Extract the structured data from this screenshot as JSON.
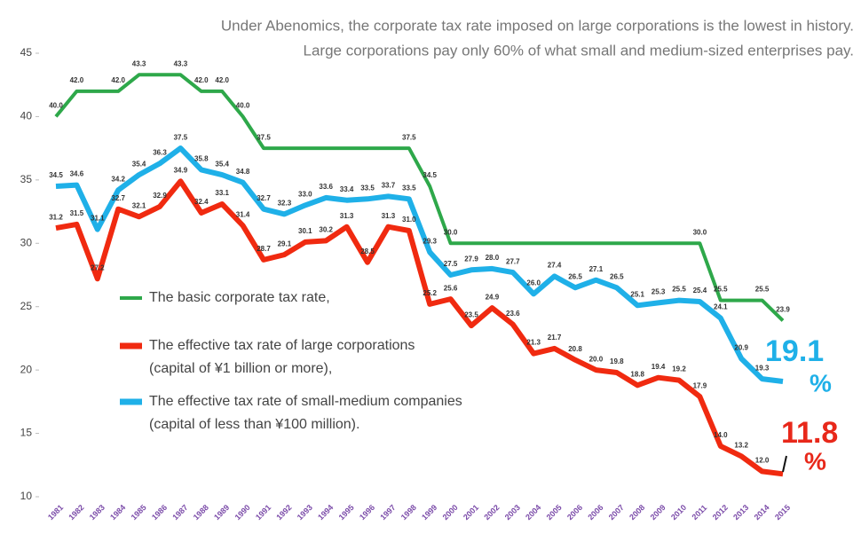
{
  "chart_data": {
    "type": "line",
    "title": [
      "Under Abenomics, the corporate tax rate imposed on large corporations is the lowest in history.",
      "Large corporations pay only 60% of what small and medium-sized enterprises pay."
    ],
    "categories": [
      "1981",
      "1982",
      "1983",
      "1984",
      "1985",
      "1986",
      "1987",
      "1988",
      "1989",
      "1990",
      "1991",
      "1992",
      "1993",
      "1994",
      "1995",
      "1996",
      "1997",
      "1998",
      "1999",
      "2000",
      "2001",
      "2002",
      "2003",
      "2004",
      "2005",
      "2006",
      "2006",
      "2007",
      "2008",
      "2009",
      "2010",
      "2011",
      "2012",
      "2013",
      "2014",
      "2015"
    ],
    "ylim": [
      10,
      45
    ],
    "yticks": [
      10,
      15,
      20,
      25,
      30,
      35,
      40,
      45
    ],
    "series": [
      {
        "name": "The basic corporate tax rate,",
        "color": "#2ea84a",
        "values": [
          40,
          42,
          42,
          42,
          43.3,
          43.3,
          43.3,
          42,
          42,
          40,
          37.5,
          37.5,
          37.5,
          37.5,
          37.5,
          37.5,
          37.5,
          37.5,
          34.5,
          30,
          30,
          30,
          30,
          30,
          30,
          30,
          30,
          30,
          30,
          30,
          30,
          30,
          25.5,
          25.5,
          25.5,
          23.9
        ],
        "value_labels": [
          "40.0",
          "42.0",
          null,
          "42.0",
          "43.3",
          null,
          "43.3",
          "42.0",
          "42.0",
          "40.0",
          "37.5",
          null,
          null,
          null,
          null,
          null,
          null,
          "37.5",
          "34.5",
          "30.0",
          null,
          null,
          null,
          null,
          null,
          null,
          null,
          null,
          null,
          null,
          null,
          "30.0",
          "25.5",
          null,
          "25.5",
          "23.9"
        ]
      },
      {
        "name": "The effective tax rate of large corporations",
        "name_detail": "(capital of ¥1 billion or more),",
        "color": "#f02a10",
        "values": [
          31.2,
          31.5,
          27.2,
          32.7,
          32.1,
          32.9,
          34.9,
          32.4,
          33.1,
          31.4,
          28.7,
          29.1,
          30.1,
          30.2,
          31.3,
          28.5,
          31.3,
          31.0,
          25.2,
          25.6,
          23.5,
          24.9,
          23.6,
          21.3,
          21.7,
          20.8,
          20.0,
          19.8,
          18.8,
          19.4,
          19.2,
          17.9,
          14.0,
          13.2,
          12.0,
          11.8
        ],
        "value_labels": [
          "31.2",
          "31.5",
          "27.2",
          "32.7",
          "32.1",
          "32.9",
          "34.9",
          "32.4",
          "33.1",
          "31.4",
          "28.7",
          "29.1",
          "30.1",
          "30.2",
          "31.3",
          "28.5",
          "31.3",
          "31.0",
          "25.2",
          "25.6",
          "23.5",
          "24.9",
          "23.6",
          "21.3",
          "21.7",
          "20.8",
          "20.0",
          "19.8",
          "18.8",
          "19.4",
          "19.2",
          "17.9",
          "14.0",
          "13.2",
          "12.0",
          "11.8"
        ]
      },
      {
        "name": "The effective tax rate of small-medium companies",
        "name_detail": "(capital of less than ¥100 million).",
        "color": "#1fb0e8",
        "values": [
          34.5,
          34.6,
          31.1,
          34.2,
          35.4,
          36.3,
          37.5,
          35.8,
          35.4,
          34.8,
          32.7,
          32.3,
          33.0,
          33.6,
          33.4,
          33.5,
          33.7,
          33.5,
          29.3,
          27.5,
          27.9,
          28.0,
          27.7,
          26.0,
          27.4,
          26.5,
          27.1,
          26.5,
          25.1,
          25.3,
          25.5,
          25.4,
          24.1,
          20.9,
          19.3,
          19.1
        ],
        "value_labels": [
          "34.5",
          "34.6",
          "31.1",
          "34.2",
          "35.4",
          "36.3",
          "37.5",
          "35.8",
          "35.4",
          "34.8",
          "32.7",
          "32.3",
          "33.0",
          "33.6",
          "33.4",
          "33.5",
          "33.7",
          "33.5",
          "29.3",
          "27.5",
          "27.9",
          "28.0",
          "27.7",
          "26.0",
          "27.4",
          "26.5",
          "27.1",
          "26.5",
          "25.1",
          "25.3",
          "25.5",
          "25.4",
          "24.1",
          "20.9",
          "19.3",
          "19.1"
        ]
      }
    ],
    "annotations": [
      "%",
      "%"
    ]
  }
}
